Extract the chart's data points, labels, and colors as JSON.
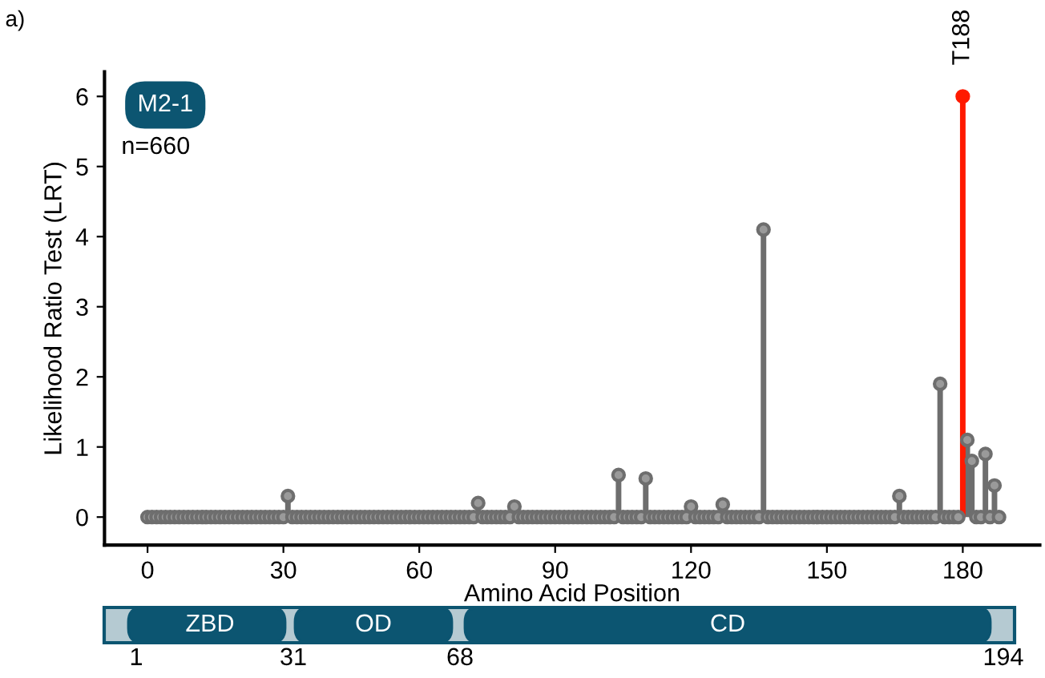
{
  "chart_data": {
    "type": "lollipop",
    "xlabel": "Amino Acid Position",
    "ylabel": "Likelihood Ratio Test (LRT)",
    "xlim": [
      -9.5,
      197
    ],
    "xticks": [
      0,
      30,
      60,
      90,
      120,
      150,
      180
    ],
    "ylim": [
      -0.4,
      6.35
    ],
    "yticks": [
      0,
      1,
      2,
      3,
      4,
      5,
      6
    ],
    "grid": false,
    "legend": false,
    "marker": "circle",
    "series": [
      {
        "color": "#6e6e6e",
        "x": [
          0,
          1,
          2,
          3,
          4,
          5,
          6,
          7,
          8,
          9,
          10,
          11,
          12,
          13,
          14,
          15,
          16,
          17,
          18,
          19,
          20,
          21,
          22,
          23,
          24,
          25,
          26,
          27,
          28,
          29,
          30,
          31,
          32,
          33,
          34,
          35,
          36,
          37,
          38,
          39,
          40,
          41,
          42,
          43,
          44,
          45,
          46,
          47,
          48,
          49,
          50,
          51,
          52,
          53,
          54,
          55,
          56,
          57,
          58,
          59,
          60,
          61,
          62,
          63,
          64,
          65,
          66,
          67,
          68,
          69,
          70,
          71,
          72,
          73,
          74,
          75,
          76,
          77,
          78,
          79,
          80,
          81,
          82,
          83,
          84,
          85,
          86,
          87,
          88,
          89,
          90,
          91,
          92,
          93,
          94,
          95,
          96,
          97,
          98,
          99,
          100,
          101,
          102,
          103,
          104,
          105,
          106,
          107,
          108,
          109,
          110,
          111,
          112,
          113,
          114,
          115,
          116,
          117,
          118,
          119,
          120,
          121,
          122,
          123,
          124,
          125,
          126,
          127,
          128,
          129,
          130,
          131,
          132,
          133,
          134,
          135,
          136,
          137,
          138,
          139,
          140,
          141,
          142,
          143,
          144,
          145,
          146,
          147,
          148,
          149,
          150,
          151,
          152,
          153,
          154,
          155,
          156,
          157,
          158,
          159,
          160,
          161,
          162,
          163,
          164,
          165,
          166,
          167,
          168,
          169,
          170,
          171,
          172,
          173,
          174,
          175,
          176,
          177,
          178,
          179,
          181,
          182,
          183,
          184,
          185,
          186,
          187,
          188
        ],
        "values": [
          0,
          0,
          0,
          0,
          0,
          0,
          0,
          0,
          0,
          0,
          0,
          0,
          0,
          0,
          0,
          0,
          0,
          0,
          0,
          0,
          0,
          0,
          0,
          0,
          0,
          0,
          0,
          0,
          0,
          0,
          0,
          0.3,
          0,
          0,
          0,
          0,
          0,
          0,
          0,
          0,
          0,
          0,
          0,
          0,
          0,
          0,
          0,
          0,
          0,
          0,
          0,
          0,
          0,
          0,
          0,
          0,
          0,
          0,
          0,
          0,
          0,
          0,
          0,
          0,
          0,
          0,
          0,
          0,
          0,
          0,
          0,
          0,
          0,
          0.2,
          0,
          0,
          0,
          0,
          0,
          0,
          0,
          0.15,
          0,
          0,
          0,
          0,
          0,
          0,
          0,
          0,
          0,
          0,
          0,
          0,
          0,
          0,
          0,
          0,
          0,
          0,
          0,
          0,
          0,
          0,
          0.6,
          0,
          0,
          0,
          0,
          0,
          0.55,
          0,
          0,
          0,
          0,
          0,
          0,
          0,
          0,
          0,
          0.15,
          0,
          0,
          0,
          0,
          0,
          0,
          0.18,
          0,
          0,
          0,
          0,
          0,
          0,
          0,
          0,
          4.1,
          0,
          0,
          0,
          0,
          0,
          0,
          0,
          0,
          0,
          0,
          0,
          0,
          0,
          0,
          0,
          0,
          0,
          0,
          0,
          0,
          0,
          0,
          0,
          0,
          0,
          0,
          0,
          0,
          0,
          0.3,
          0,
          0,
          0,
          0,
          0,
          0,
          0,
          0,
          1.9,
          0,
          0,
          0,
          0,
          1.1,
          0.8,
          0,
          0,
          0.9,
          0,
          0.45,
          0
        ]
      },
      {
        "color": "#ff1a00",
        "x": [
          180
        ],
        "values": [
          6
        ]
      }
    ],
    "annotations": [
      {
        "text": "T188",
        "x": 180,
        "y": 6
      },
      "a)",
      "M2-1",
      "n=660",
      "ZBD",
      "OD",
      "CD",
      "1",
      "31",
      "68",
      "194"
    ]
  }
}
